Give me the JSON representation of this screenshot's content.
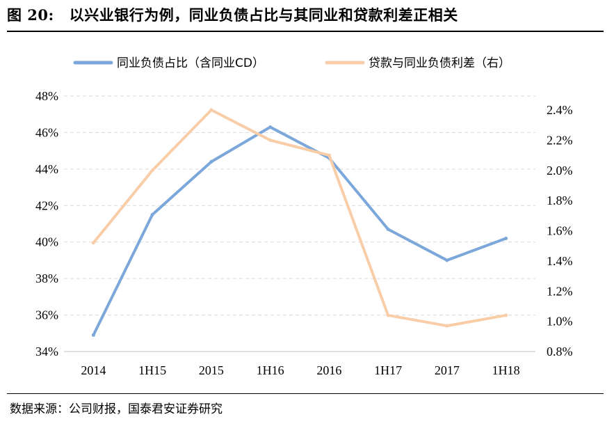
{
  "header": {
    "figure_number": "图 20:",
    "title": "以兴业银行为例，同业负债占比与其同业和贷款利差正相关"
  },
  "footer": {
    "source": "数据来源：公司财报，国泰君安证券研究"
  },
  "colors": {
    "series_blue": "#7BA7DA",
    "series_peach": "#F8CDA8",
    "grid": "#D9D9D9"
  },
  "chart_data": {
    "type": "line",
    "title": "",
    "categories": [
      "2014",
      "1H15",
      "2015",
      "1H16",
      "2016",
      "1H17",
      "2017",
      "1H18"
    ],
    "series": [
      {
        "name": "同业负债占比（含同业CD）",
        "axis": "left",
        "color": "#7BA7DA",
        "values": [
          34.9,
          41.5,
          44.4,
          46.3,
          44.6,
          40.7,
          39.0,
          40.2
        ]
      },
      {
        "name": "贷款与同业负债利差（右）",
        "axis": "right",
        "color": "#F8CDA8",
        "values": [
          1.52,
          2.0,
          2.4,
          2.2,
          2.1,
          1.04,
          0.97,
          1.04
        ]
      }
    ],
    "y_left": {
      "min": 34,
      "max": 48,
      "step": 2,
      "tick_labels": [
        "34%",
        "36%",
        "38%",
        "40%",
        "42%",
        "44%",
        "46%",
        "48%"
      ]
    },
    "y_right": {
      "min": 0.8,
      "max": 2.4,
      "step": 0.2,
      "tick_labels": [
        "0.8%",
        "1.0%",
        "1.2%",
        "1.4%",
        "1.6%",
        "1.8%",
        "2.0%",
        "2.2%",
        "2.4%"
      ]
    },
    "grid": "horizontal-dashed",
    "legend_position": "top"
  }
}
